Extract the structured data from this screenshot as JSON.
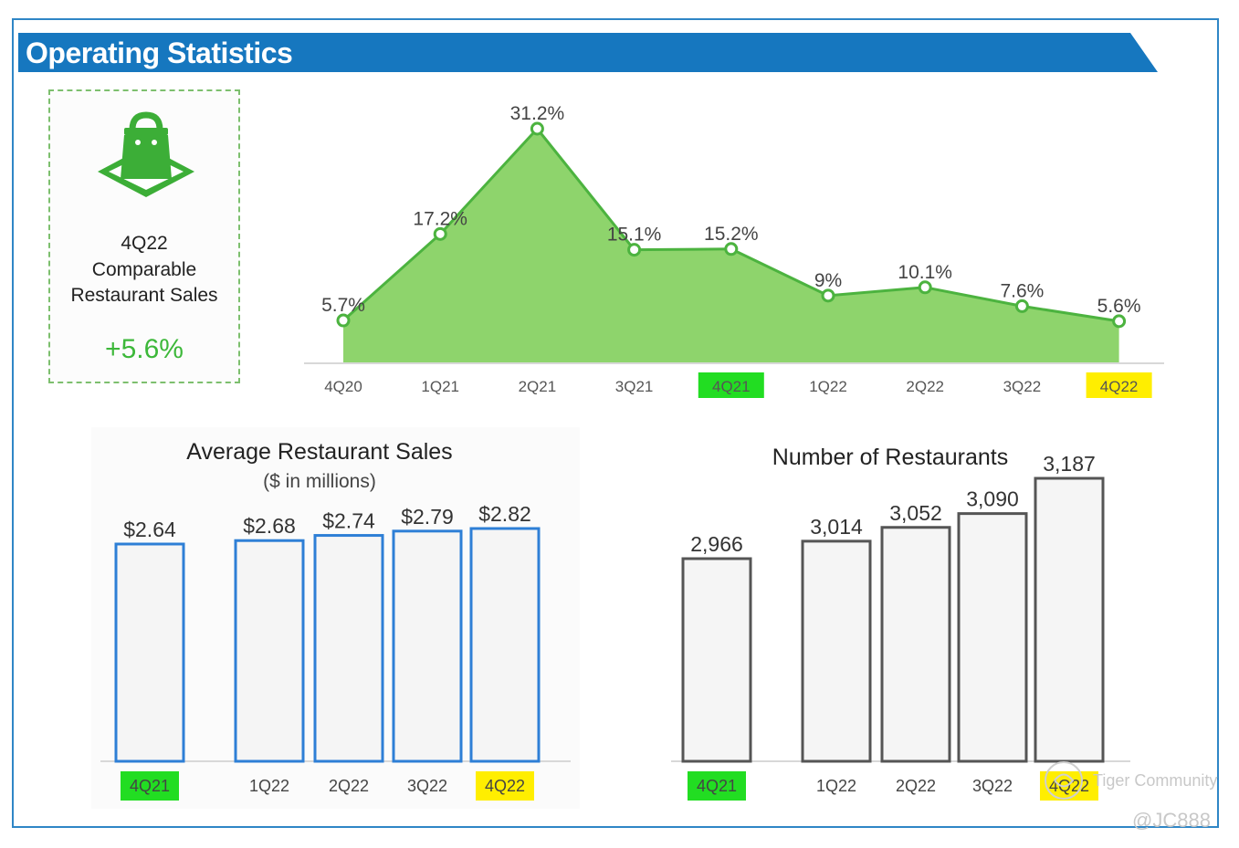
{
  "page": {
    "title": "Operating Statistics",
    "accent_color": "#1677bf"
  },
  "kpi": {
    "icon": "shopping-bag-icon",
    "period": "4Q22",
    "line1": "Comparable",
    "line2": "Restaurant Sales",
    "value": "+5.6%"
  },
  "watermark": {
    "brand": "Tiger Community",
    "handle": "@JC888"
  },
  "chart_data": [
    {
      "type": "area",
      "title": "4Q22 Comparable Restaurant Sales",
      "categories": [
        "4Q20",
        "1Q21",
        "2Q21",
        "3Q21",
        "4Q21",
        "1Q22",
        "2Q22",
        "3Q22",
        "4Q22"
      ],
      "values": [
        5.7,
        17.2,
        31.2,
        15.1,
        15.2,
        9,
        10.1,
        7.6,
        5.6
      ],
      "labels": [
        "5.7%",
        "17.2%",
        "31.2%",
        "15.1%",
        "15.2%",
        "9%",
        "10.1%",
        "7.6%",
        "5.6%"
      ],
      "ylim": [
        0,
        33
      ],
      "fill_color": "#8ed46c",
      "line_color": "#4cb33f",
      "highlight": {
        "4Q21": "#22dd22",
        "4Q22": "#ffee00"
      }
    },
    {
      "type": "bar",
      "title": "Average Restaurant Sales",
      "subtitle": "($ in millions)",
      "categories": [
        "4Q21",
        "1Q22",
        "2Q22",
        "3Q22",
        "4Q22"
      ],
      "values": [
        2.64,
        2.68,
        2.74,
        2.79,
        2.82
      ],
      "labels": [
        "$2.64",
        "$2.68",
        "$2.74",
        "$2.79",
        "$2.82"
      ],
      "ylim": [
        0,
        2.82
      ],
      "bar_color": "#2e7fd6",
      "highlight": {
        "4Q21": "#22dd22",
        "4Q22": "#ffee00"
      }
    },
    {
      "type": "bar",
      "title": "Number of Restaurants",
      "categories": [
        "4Q21",
        "1Q22",
        "2Q22",
        "3Q22",
        "4Q22"
      ],
      "values": [
        2966,
        3014,
        3052,
        3090,
        3187
      ],
      "labels": [
        "2,966",
        "3,014",
        "3,052",
        "3,090",
        "3,187"
      ],
      "ylim": [
        0,
        3187
      ],
      "bar_color": "#555555",
      "highlight": {
        "4Q21": "#22dd22",
        "4Q22": "#ffee00"
      }
    }
  ]
}
